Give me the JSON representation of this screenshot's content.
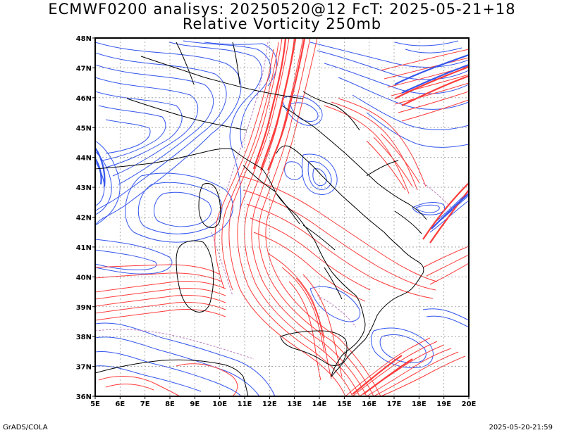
{
  "title": {
    "line1": "ECMWF0200 analisys: 20250520@12 FcT: 2025-05-21+18",
    "line2": "Relative Vorticity 250mb"
  },
  "footer": {
    "left": "GrADS/COLA",
    "right": "2025-05-20-21:59"
  },
  "map": {
    "lon_range": [
      5,
      20
    ],
    "lat_range": [
      36,
      48
    ],
    "lon_ticks": [
      "5E",
      "6E",
      "7E",
      "8E",
      "9E",
      "10E",
      "11E",
      "12E",
      "13E",
      "14E",
      "15E",
      "16E",
      "17E",
      "18E",
      "19E",
      "20E"
    ],
    "lat_ticks": [
      "36N",
      "37N",
      "38N",
      "39N",
      "40N",
      "41N",
      "42N",
      "43N",
      "44N",
      "45N",
      "46N",
      "47N",
      "48N"
    ],
    "colors": {
      "positive": "#ff3b3b",
      "negative": "#3355ee",
      "zero": "#c080c0",
      "coast": "#000000",
      "grid": "#999999"
    }
  }
}
